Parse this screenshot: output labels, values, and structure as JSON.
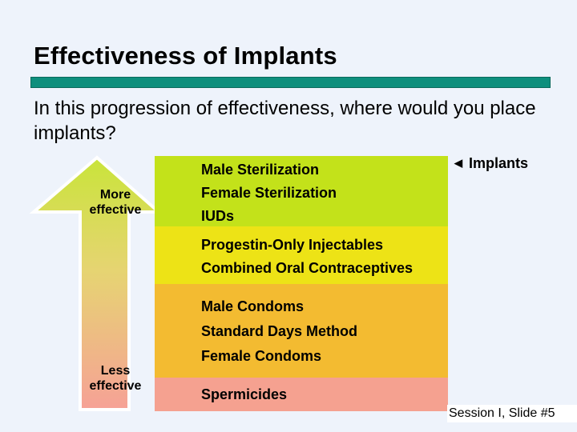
{
  "slide": {
    "title": "Effectiveness of Implants",
    "question": "In this progression of effectiveness, where would you place implants?",
    "arrow": {
      "top_label_line1": "More",
      "top_label_line2": "effective",
      "bottom_label_line1": "Less",
      "bottom_label_line2": "effective"
    },
    "tiers": [
      {
        "methods": [
          "Male Sterilization",
          "Female Sterilization",
          "IUDs"
        ],
        "color": "#c3e21a"
      },
      {
        "methods": [
          "Progestin-Only Injectables",
          "Combined Oral Contraceptives"
        ],
        "color": "#ede316"
      },
      {
        "methods": [
          "Male Condoms",
          "Standard Days Method",
          "Female Condoms"
        ],
        "color": "#f3bb31"
      },
      {
        "methods": [
          "Spermicides"
        ],
        "color": "#f5a190"
      }
    ],
    "marker_label": "Implants",
    "marker_icon": "left-triangle-icon",
    "footer": "Session I, Slide #5",
    "colors": {
      "title_rule": "#0e8f7d",
      "background": "#eef3fb"
    }
  }
}
